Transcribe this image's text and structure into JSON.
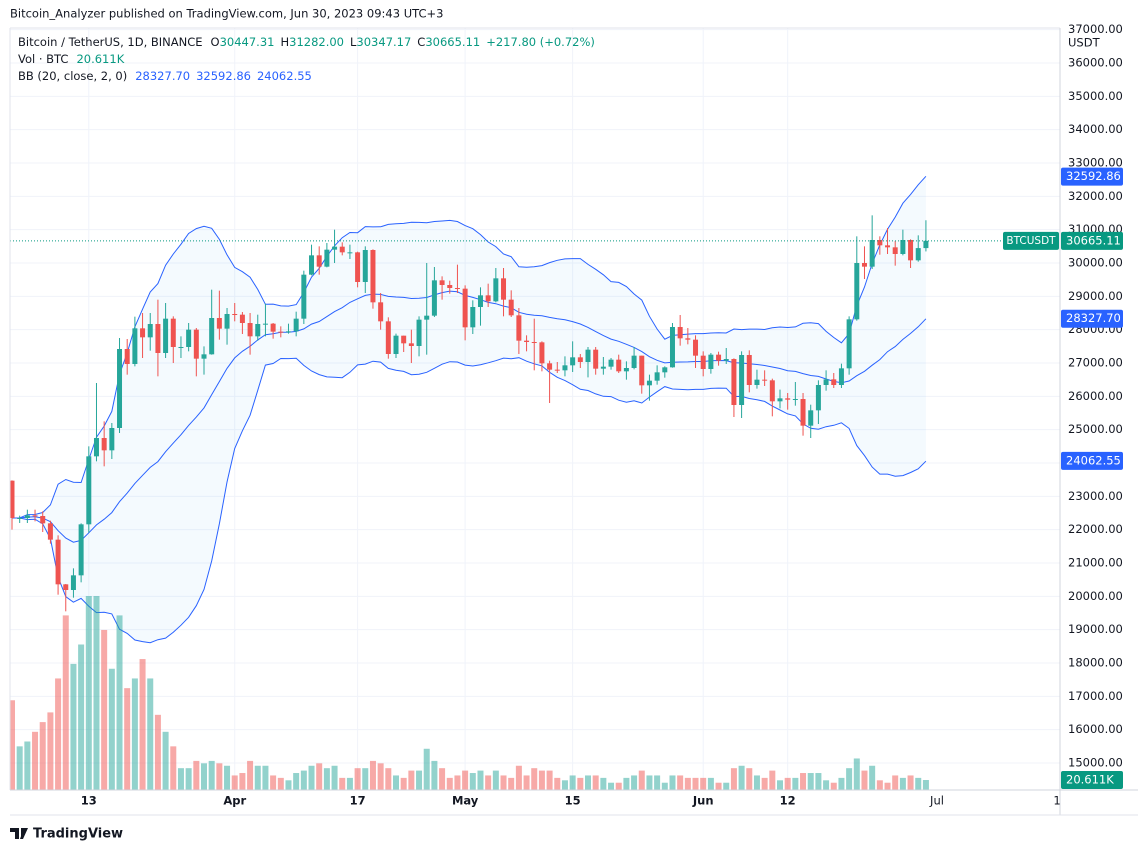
{
  "header": {
    "published": "Bitcoin_Analyzer published on TradingView.com, Jun 30, 2023 09:43 UTC+3",
    "symbol": "Bitcoin / TetherUS, 1D, BINANCE",
    "ohlc": [
      {
        "key": "O",
        "text": "30447.31"
      },
      {
        "key": "H",
        "text": "31282.00"
      },
      {
        "key": "L",
        "text": "30347.17"
      },
      {
        "key": "C",
        "text": "30665.11"
      }
    ],
    "change": "+217.80 (+0.72%)",
    "volume_legend": "Vol · BTC",
    "volume_text": "20.611K",
    "bb_legend": "BB (20, close, 2, 0)",
    "bb_texts": [
      "28327.70",
      "32592.86",
      "24062.55"
    ],
    "currency": "USDT",
    "x_extra": [
      "Jul",
      "1"
    ],
    "logo": "TradingView"
  },
  "chart_data": {
    "type": "candlestick",
    "categories": [
      null,
      null,
      null,
      null,
      null,
      null,
      null,
      null,
      null,
      null,
      "13",
      null,
      null,
      null,
      null,
      null,
      null,
      null,
      null,
      null,
      null,
      null,
      null,
      null,
      null,
      null,
      null,
      null,
      null,
      "Apr",
      null,
      null,
      null,
      null,
      null,
      null,
      null,
      null,
      null,
      null,
      null,
      null,
      null,
      null,
      null,
      "17",
      null,
      null,
      null,
      null,
      null,
      null,
      null,
      null,
      null,
      null,
      null,
      null,
      null,
      "May",
      null,
      null,
      null,
      null,
      null,
      null,
      null,
      null,
      null,
      null,
      null,
      null,
      null,
      "15",
      null,
      null,
      null,
      null,
      null,
      null,
      null,
      null,
      null,
      null,
      null,
      null,
      null,
      null,
      null,
      null,
      "Jun",
      null,
      null,
      null,
      null,
      null,
      null,
      null,
      null,
      null,
      null,
      "12",
      null,
      null,
      null,
      null,
      null,
      null,
      null,
      null,
      null,
      null,
      null,
      null,
      null,
      null,
      null,
      null,
      null,
      null
    ],
    "open": [
      23470,
      22350,
      22350,
      22430,
      22410,
      22190,
      21700,
      20360,
      20190,
      20630,
      22160,
      24200,
      24750,
      24380,
      25050,
      27420,
      26970,
      28040,
      27770,
      28170,
      27300,
      28330,
      27480,
      27480,
      28000,
      27130,
      27260,
      28350,
      28030,
      28470,
      28450,
      28200,
      27800,
      28170,
      28180,
      27940,
      27930,
      27950,
      28330,
      29650,
      30230,
      29890,
      30400,
      30490,
      30320,
      30320,
      29430,
      30390,
      28820,
      28250,
      27270,
      27820,
      27590,
      27510,
      28300,
      28420,
      29480,
      29340,
      29250,
      29230,
      28070,
      28680,
      29030,
      28850,
      29540,
      28900,
      28430,
      27670,
      27630,
      27620,
      26990,
      26800,
      26780,
      26930,
      27170,
      27030,
      27400,
      26830,
      26890,
      27100,
      26750,
      26850,
      27220,
      26330,
      26470,
      26720,
      26870,
      28080,
      27740,
      27700,
      27220,
      26820,
      27250,
      27070,
      27120,
      25740,
      27240,
      26340,
      26500,
      26480,
      25850,
      25940,
      25900,
      25920,
      25120,
      25580,
      26340,
      26510,
      26340,
      26840,
      28310,
      30000,
      29890,
      30690,
      30530,
      30470,
      30270,
      30690,
      30080,
      30447.31
    ],
    "high": [
      23480,
      22420,
      22600,
      22600,
      22550,
      22270,
      21830,
      20370,
      20840,
      22190,
      24500,
      26400,
      25250,
      25200,
      27750,
      27720,
      28390,
      28500,
      28500,
      28900,
      28800,
      28400,
      27800,
      28200,
      28050,
      27500,
      29200,
      29170,
      28650,
      28800,
      28530,
      28500,
      28450,
      28780,
      28200,
      28100,
      28180,
      28540,
      29770,
      30550,
      30500,
      30600,
      31000,
      30620,
      30550,
      30340,
      30500,
      30410,
      29100,
      28370,
      27880,
      27820,
      28000,
      28400,
      30000,
      29880,
      29600,
      29470,
      29950,
      29330,
      28880,
      29270,
      29380,
      29850,
      29850,
      29180,
      28650,
      27830,
      28330,
      27650,
      27070,
      27030,
      27200,
      27650,
      27270,
      27480,
      27480,
      27180,
      27150,
      27250,
      27050,
      27480,
      27220,
      26650,
      26930,
      26900,
      28200,
      28440,
      28050,
      27830,
      27350,
      27300,
      27340,
      27450,
      27140,
      27350,
      27380,
      26800,
      26780,
      26530,
      26200,
      26100,
      26430,
      26100,
      25750,
      26480,
      26780,
      26700,
      26980,
      28400,
      30800,
      30500,
      31430,
      30800,
      31050,
      30660,
      31000,
      30710,
      30830,
      31282
    ],
    "low": [
      22000,
      22200,
      22200,
      22250,
      21930,
      21580,
      20050,
      19550,
      19960,
      20420,
      21910,
      24050,
      23900,
      24120,
      24900,
      26650,
      26900,
      27150,
      27370,
      26600,
      27150,
      27000,
      27150,
      27350,
      26600,
      26650,
      27250,
      27700,
      27550,
      28250,
      27870,
      27250,
      27670,
      27800,
      27730,
      27770,
      27880,
      27800,
      28170,
      29630,
      29650,
      29870,
      30000,
      30230,
      30120,
      29270,
      29100,
      28630,
      28000,
      27130,
      27150,
      27330,
      27000,
      27200,
      27250,
      28380,
      28900,
      29080,
      29100,
      27680,
      27870,
      28120,
      28680,
      28820,
      28400,
      28380,
      27270,
      27350,
      26780,
      26750,
      25800,
      26700,
      26600,
      26730,
      26850,
      26570,
      26650,
      26650,
      26800,
      26700,
      26500,
      26810,
      26080,
      25870,
      26350,
      26560,
      26860,
      27520,
      27560,
      26850,
      26600,
      26680,
      26920,
      26970,
      25380,
      25350,
      26120,
      26230,
      26310,
      25400,
      25640,
      25600,
      25720,
      24820,
      24750,
      25170,
      26170,
      26250,
      26250,
      26650,
      28270,
      29520,
      29820,
      30250,
      30270,
      29920,
      30230,
      29850,
      30040,
      30347.17
    ],
    "close": [
      22350,
      22350,
      22430,
      22410,
      22190,
      21700,
      20360,
      20190,
      20630,
      22160,
      24200,
      24750,
      24380,
      25050,
      27420,
      26970,
      28040,
      27770,
      28170,
      27300,
      28330,
      27480,
      27480,
      28000,
      27130,
      27260,
      28350,
      28030,
      28470,
      28450,
      28200,
      27800,
      28170,
      28180,
      27940,
      27930,
      27950,
      28330,
      29650,
      30230,
      29890,
      30400,
      30490,
      30320,
      30320,
      29430,
      30390,
      28820,
      28250,
      27270,
      27820,
      27590,
      27510,
      28300,
      28420,
      29480,
      29340,
      29250,
      29230,
      28070,
      28680,
      29030,
      28850,
      29540,
      28900,
      28430,
      27670,
      27630,
      27620,
      26990,
      26800,
      26780,
      26930,
      27170,
      27030,
      27400,
      26830,
      26890,
      27100,
      26750,
      26850,
      27220,
      26330,
      26470,
      26720,
      26870,
      28080,
      27740,
      27700,
      27220,
      26820,
      27250,
      27070,
      27120,
      25740,
      27240,
      26340,
      26500,
      26480,
      25850,
      25940,
      25900,
      25920,
      25120,
      25580,
      26340,
      26510,
      26340,
      26840,
      28310,
      30000,
      29890,
      30690,
      30530,
      30470,
      30270,
      30690,
      30080,
      30447.31,
      30665.11
    ],
    "volume": [
      185,
      90,
      100,
      120,
      140,
      160,
      230,
      360,
      260,
      300,
      400,
      400,
      330,
      250,
      360,
      210,
      230,
      270,
      230,
      155,
      120,
      90,
      45,
      45,
      60,
      55,
      60,
      55,
      50,
      30,
      35,
      60,
      50,
      50,
      30,
      25,
      20,
      35,
      40,
      50,
      55,
      45,
      50,
      25,
      25,
      45,
      45,
      60,
      55,
      45,
      30,
      25,
      40,
      40,
      85,
      60,
      45,
      25,
      30,
      40,
      35,
      40,
      30,
      40,
      30,
      25,
      50,
      30,
      45,
      40,
      40,
      25,
      20,
      30,
      25,
      30,
      30,
      25,
      15,
      15,
      25,
      30,
      40,
      30,
      30,
      15,
      30,
      30,
      25,
      25,
      25,
      25,
      15,
      15,
      45,
      50,
      45,
      30,
      25,
      40,
      20,
      25,
      25,
      35,
      35,
      35,
      20,
      15,
      25,
      45,
      65,
      40,
      50,
      20,
      15,
      30,
      25,
      30,
      25,
      20.611
    ],
    "up_color": "#26a69a",
    "down_color": "#ef5350",
    "bb_color": "#2962ff",
    "ylim": [
      14190,
      37050
    ],
    "yticks": [
      {
        "value": 15000,
        "label": "15000.00"
      },
      {
        "value": 16000,
        "label": "16000.00"
      },
      {
        "value": 17000,
        "label": "17000.00"
      },
      {
        "value": 18000,
        "label": "18000.00"
      },
      {
        "value": 19000,
        "label": "19000.00"
      },
      {
        "value": 20000,
        "label": "20000.00"
      },
      {
        "value": 21000,
        "label": "21000.00"
      },
      {
        "value": 22000,
        "label": "22000.00"
      },
      {
        "value": 23000,
        "label": "23000.00"
      },
      {
        "value": 24000,
        "label": "24000.00"
      },
      {
        "value": 25000,
        "label": "25000.00"
      },
      {
        "value": 26000,
        "label": "26000.00"
      },
      {
        "value": 27000,
        "label": "27000.00"
      },
      {
        "value": 28000,
        "label": "28000.00"
      },
      {
        "value": 29000,
        "label": "29000.00"
      },
      {
        "value": 30000,
        "label": "30000.00"
      },
      {
        "value": 31000,
        "label": "31000.00"
      },
      {
        "value": 32000,
        "label": "32000.00"
      },
      {
        "value": 33000,
        "label": "33000.00"
      },
      {
        "value": 34000,
        "label": "34000.00"
      },
      {
        "value": 35000,
        "label": "35000.00"
      },
      {
        "value": 36000,
        "label": "36000.00"
      },
      {
        "value": 37000,
        "label": "37000.00"
      }
    ],
    "grid": true,
    "price_badges": [
      {
        "value": 32592.86,
        "label": "32592.86",
        "color": "#2962ff"
      },
      {
        "value": 30665.11,
        "label": "30665.11",
        "name": "BTCUSDT",
        "color": "#089981"
      },
      {
        "value": 28327.7,
        "label": "28327.70",
        "color": "#2962ff"
      },
      {
        "value": 24062.55,
        "label": "24062.55",
        "color": "#2962ff"
      }
    ],
    "volume_badge": {
      "value": 20.611,
      "label": "20.611K",
      "color": "#089981"
    }
  }
}
